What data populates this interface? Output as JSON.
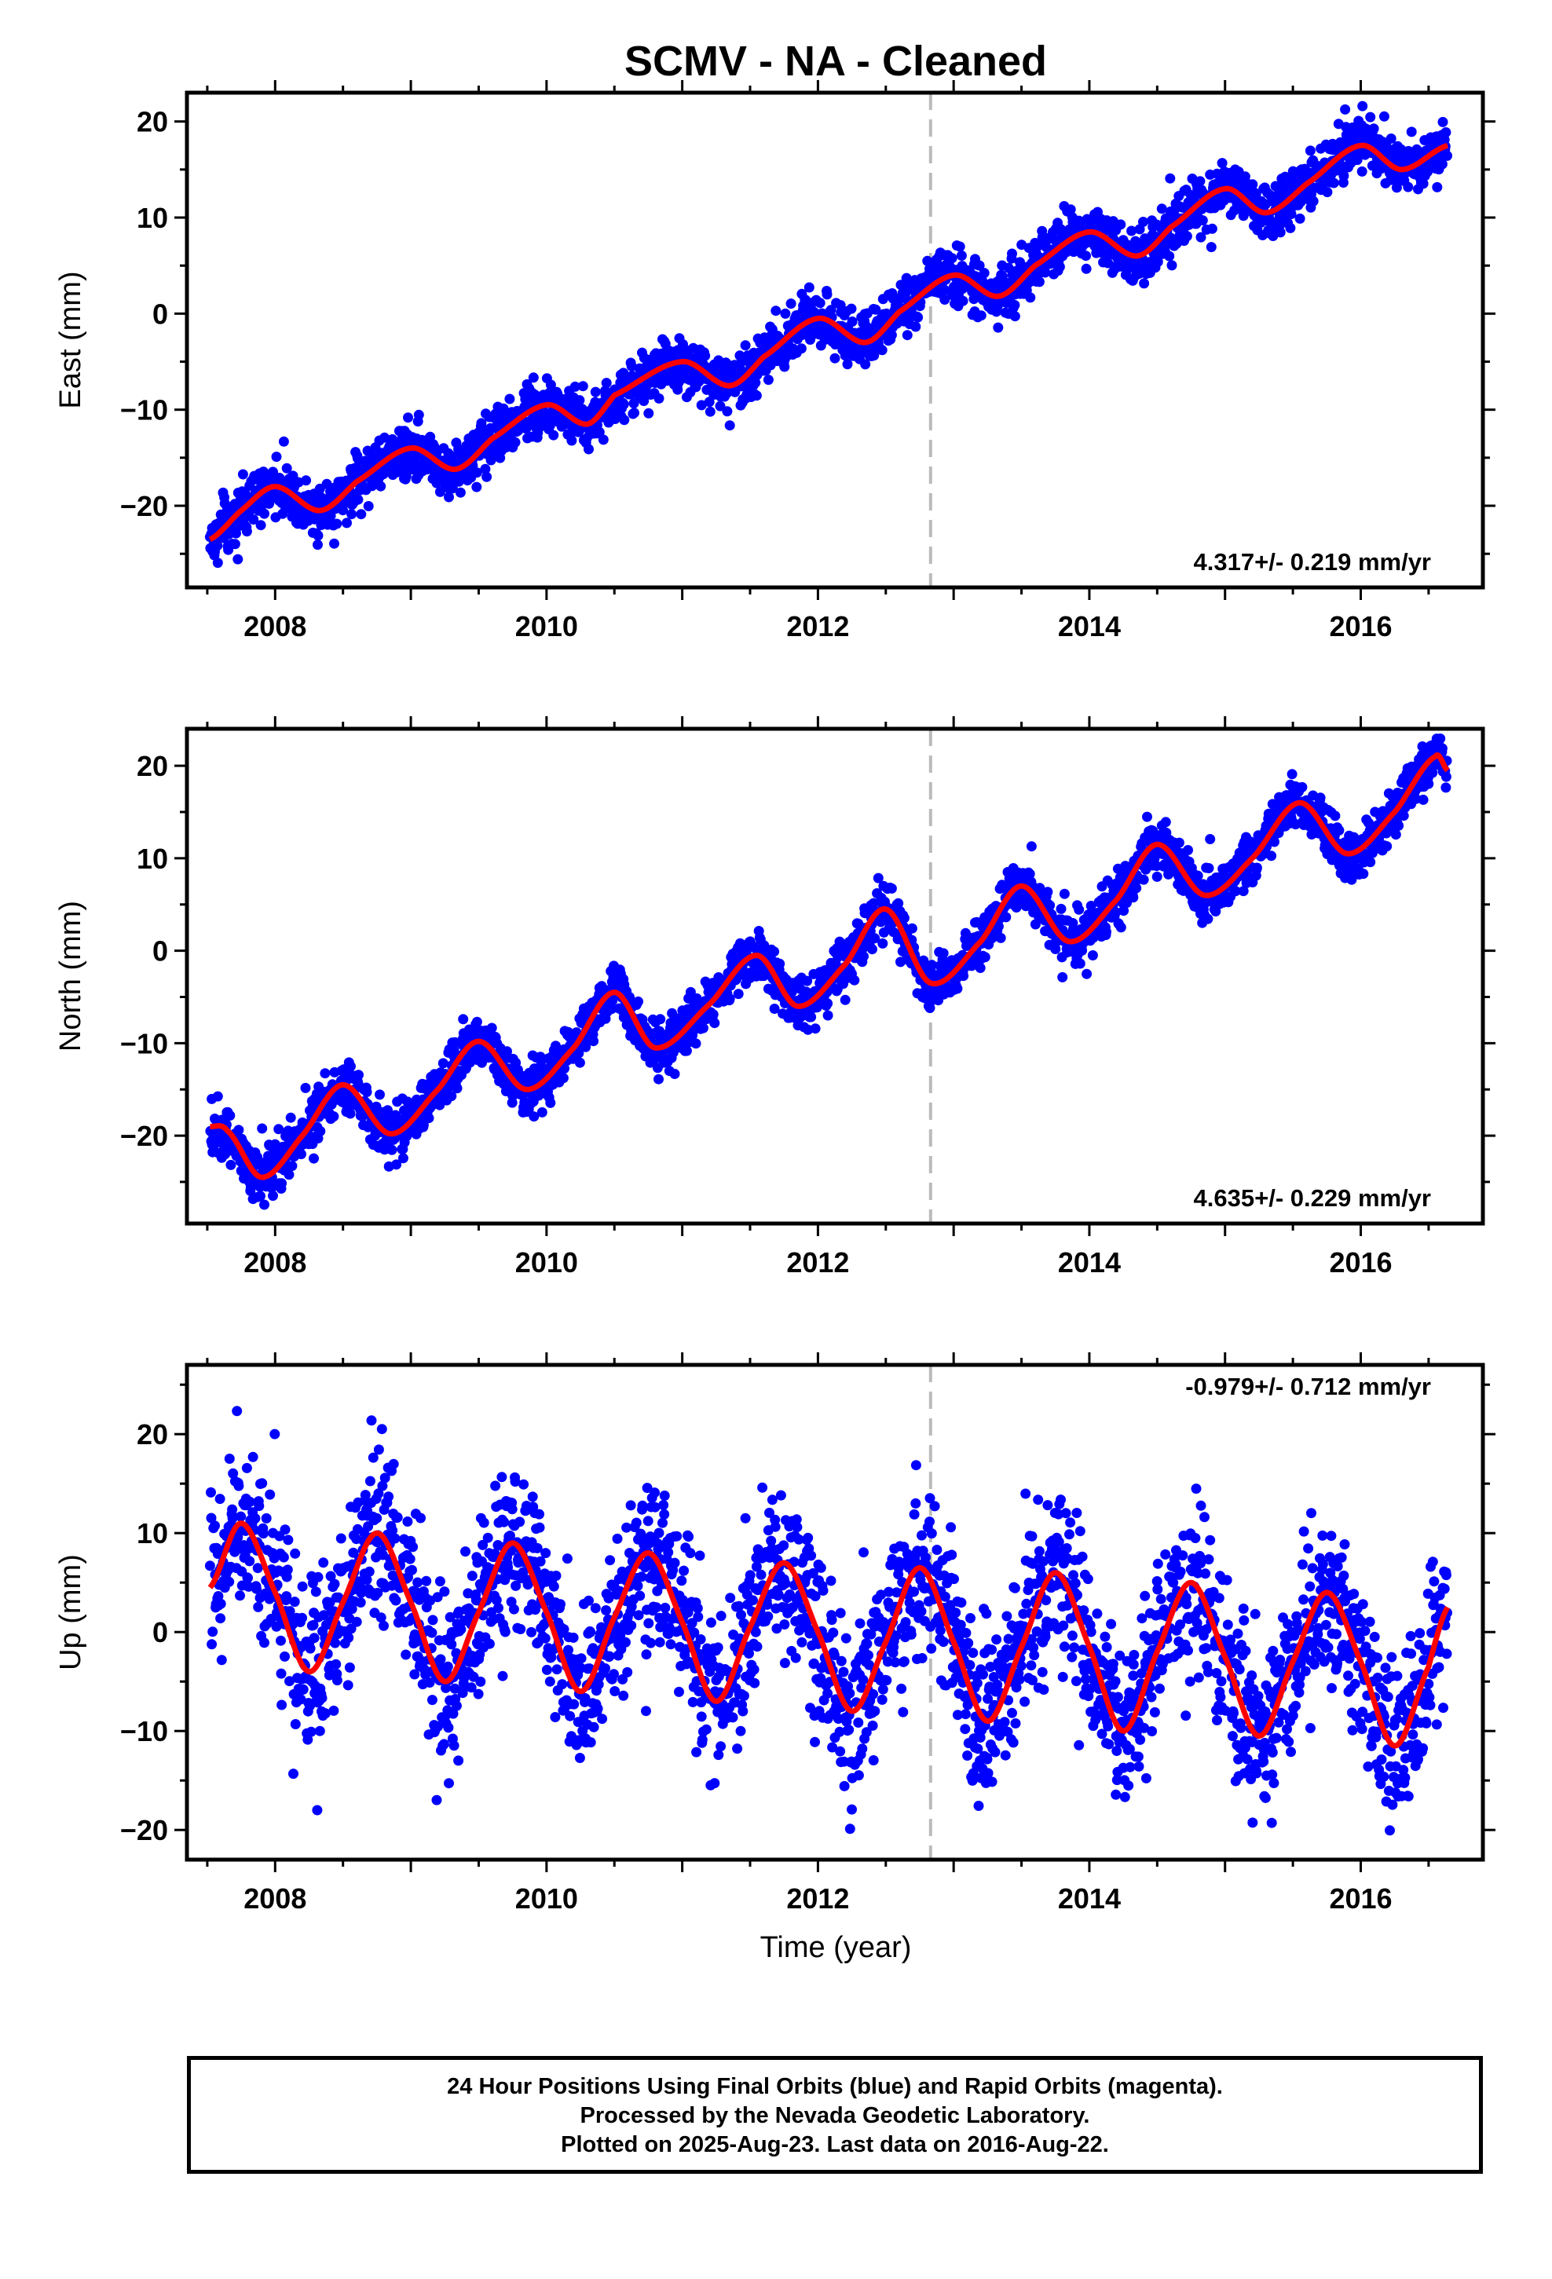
{
  "title": "SCMV  - NA - Cleaned",
  "xlabel": "Time (year)",
  "caption": [
    "24 Hour Positions Using Final Orbits (blue) and Rapid Orbits (magenta).",
    "Processed by the Nevada Geodetic Laboratory.",
    "Plotted on 2025-Aug-23. Last data on 2016-Aug-22."
  ],
  "colors": {
    "points": "#0000ff",
    "model": "#ff0000",
    "event_line": "#bbbbbb"
  },
  "chart_data": [
    {
      "type": "scatter",
      "ylabel": "East (mm)",
      "rate_label": "4.317+/- 0.219 mm/yr",
      "xlim": [
        2007.35,
        2016.9
      ],
      "ylim": [
        -28.5,
        23
      ],
      "xticks": [
        2008,
        2010,
        2012,
        2014,
        2016
      ],
      "yticks": [
        -20,
        -10,
        0,
        10,
        20
      ],
      "event_line_x": 2012.83,
      "data_range": [
        2007.52,
        2016.64
      ],
      "series": [
        {
          "x": [
            2007.52,
            2007.75,
            2008.0,
            2008.33,
            2008.6,
            2009.0,
            2009.33,
            2009.6,
            2010.0,
            2010.3,
            2010.5,
            2011.0,
            2011.35,
            2011.6,
            2012.0,
            2012.35,
            2012.6,
            2013.0,
            2013.33,
            2013.6,
            2014.0,
            2014.35,
            2014.6,
            2015.0,
            2015.3,
            2015.6,
            2016.0,
            2016.3,
            2016.64
          ],
          "y": [
            -23.5,
            -20.5,
            -18.0,
            -20.5,
            -17.5,
            -14.0,
            -16.2,
            -13.0,
            -9.5,
            -11.5,
            -8.5,
            -5.0,
            -7.5,
            -4.5,
            -0.5,
            -3.0,
            0.2,
            4.0,
            1.8,
            5.0,
            8.5,
            6.0,
            9.0,
            13.0,
            10.5,
            13.5,
            17.5,
            15.0,
            17.5
          ]
        }
      ]
    },
    {
      "type": "scatter",
      "ylabel": "North (mm)",
      "rate_label": "4.635+/- 0.229 mm/yr",
      "xlim": [
        2007.35,
        2016.9
      ],
      "ylim": [
        -29.5,
        24
      ],
      "xticks": [
        2008,
        2010,
        2012,
        2014,
        2016
      ],
      "yticks": [
        -20,
        -10,
        0,
        10,
        20
      ],
      "event_line_x": 2012.83,
      "data_range": [
        2007.52,
        2016.64
      ],
      "series": [
        {
          "x": [
            2007.52,
            2007.65,
            2007.9,
            2008.2,
            2008.5,
            2008.85,
            2009.2,
            2009.5,
            2009.85,
            2010.2,
            2010.5,
            2010.8,
            2011.2,
            2011.55,
            2011.85,
            2012.2,
            2012.5,
            2012.83,
            2013.2,
            2013.5,
            2013.85,
            2014.2,
            2014.5,
            2014.85,
            2015.2,
            2015.55,
            2015.9,
            2016.25,
            2016.55,
            2016.64
          ],
          "y": [
            -19.0,
            -19.5,
            -24.5,
            -20.0,
            -14.5,
            -19.8,
            -15.0,
            -9.8,
            -15.0,
            -10.5,
            -4.5,
            -10.5,
            -5.8,
            -0.5,
            -6.0,
            -1.5,
            4.5,
            -3.5,
            1.0,
            7.0,
            1.0,
            5.5,
            11.5,
            6.0,
            10.0,
            16.0,
            10.5,
            15.0,
            21.0,
            19.5
          ]
        }
      ]
    },
    {
      "type": "scatter",
      "ylabel": "Up (mm)",
      "rate_label": "-0.979+/- 0.712 mm/yr",
      "xlim": [
        2007.35,
        2016.9
      ],
      "ylim": [
        -23,
        27
      ],
      "xticks": [
        2008,
        2010,
        2012,
        2014,
        2016
      ],
      "yticks": [
        -20,
        -10,
        0,
        10,
        20
      ],
      "event_line_x": 2012.83,
      "data_range": [
        2007.52,
        2016.64
      ],
      "series": [
        {
          "x": [
            2007.52,
            2007.75,
            2008.0,
            2008.25,
            2008.5,
            2008.75,
            2009.0,
            2009.25,
            2009.5,
            2009.75,
            2010.0,
            2010.25,
            2010.5,
            2010.75,
            2011.0,
            2011.25,
            2011.5,
            2011.75,
            2012.0,
            2012.25,
            2012.5,
            2012.75,
            2013.0,
            2013.25,
            2013.5,
            2013.75,
            2014.0,
            2014.25,
            2014.5,
            2014.75,
            2015.0,
            2015.25,
            2015.5,
            2015.75,
            2016.0,
            2016.25,
            2016.5,
            2016.64
          ],
          "y": [
            4.5,
            11.0,
            4.0,
            -4.0,
            3.0,
            10.0,
            3.0,
            -5.0,
            2.0,
            9.0,
            2.0,
            -6.0,
            1.5,
            8.0,
            1.0,
            -7.0,
            0.5,
            7.0,
            0.0,
            -8.0,
            -1.0,
            6.5,
            -1.0,
            -9.0,
            -1.5,
            6.0,
            -1.5,
            -10.0,
            -2.0,
            5.0,
            -2.5,
            -10.5,
            -3.0,
            4.0,
            -3.0,
            -11.5,
            -3.5,
            2.5
          ]
        }
      ]
    }
  ]
}
